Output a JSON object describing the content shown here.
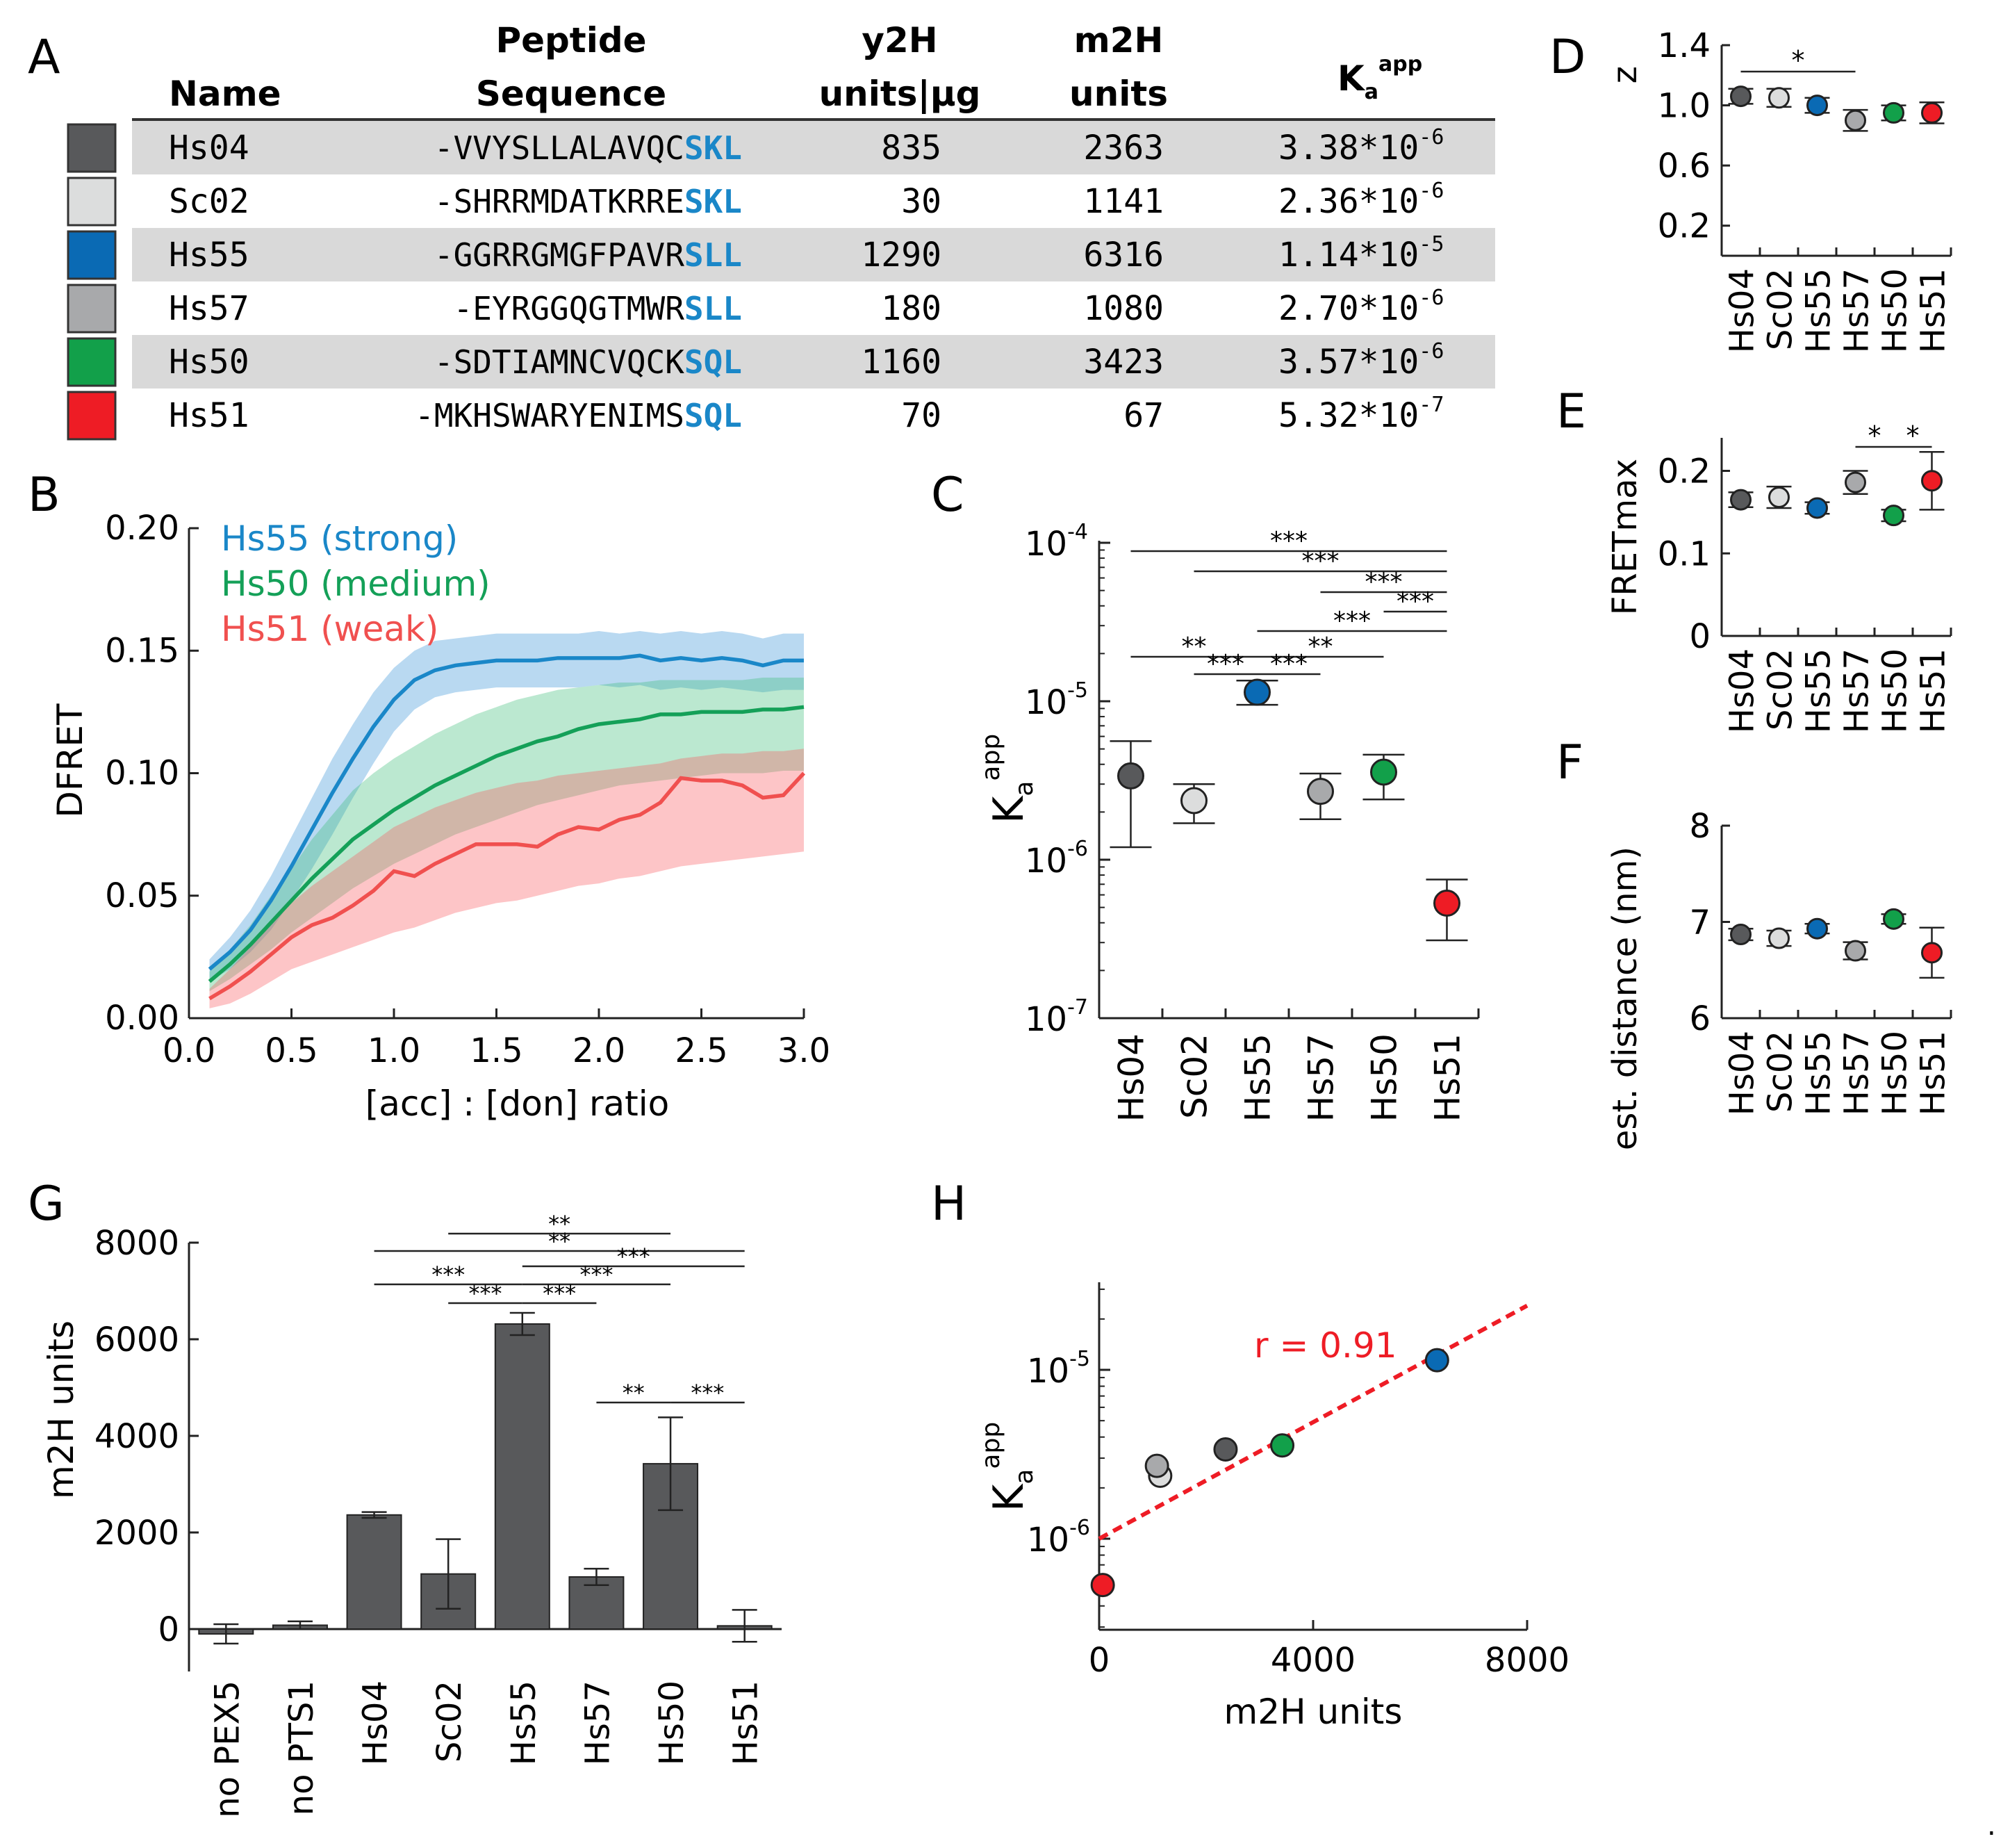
{
  "colors": {
    "Hs04": "#58595b",
    "Sc02": "#dcdddd",
    "Hs55": "#0a6ab4",
    "Hs57": "#a8a9ab",
    "Hs50": "#12a04a",
    "Hs51": "#ee1c25",
    "motif": "#1a87c8",
    "row_shade": "#d9d9d9",
    "bar": "#58595b",
    "strong": "#1a87c8",
    "medium": "#14a058",
    "weak": "#f0504f",
    "fit": "#ee1c25"
  },
  "panel_labels": {
    "A": "A",
    "B": "B",
    "C": "C",
    "D": "D",
    "E": "E",
    "F": "F",
    "G": "G",
    "H": "H"
  },
  "table": {
    "headers": {
      "name": "Name",
      "peptide_line1": "Peptide",
      "peptide_line2": "Sequence",
      "y2h_line1": "y2H",
      "y2h_line2": "units|µg",
      "m2h_line1": "m2H",
      "m2h_line2": "units",
      "ka_main": "K",
      "ka_sub": "a",
      "ka_sup": "app"
    },
    "rows": [
      {
        "name": "Hs04",
        "seq_prefix": "-VVYSLLALAVQC",
        "seq_motif": "SKL",
        "y2h": "835",
        "m2h": "2363",
        "ka_base": "3.38*10",
        "ka_exp": "-6"
      },
      {
        "name": "Sc02",
        "seq_prefix": "-SHRRMDATKRRE",
        "seq_motif": "SKL",
        "y2h": "30",
        "m2h": "1141",
        "ka_base": "2.36*10",
        "ka_exp": "-6"
      },
      {
        "name": "Hs55",
        "seq_prefix": "-GGRRGMGFPAVR",
        "seq_motif": "SLL",
        "y2h": "1290",
        "m2h": "6316",
        "ka_base": "1.14*10",
        "ka_exp": "-5"
      },
      {
        "name": "Hs57",
        "seq_prefix": "-EYRGGQGTMWR",
        "seq_motif": "SLL",
        "y2h": "180",
        "m2h": "1080",
        "ka_base": "2.70*10",
        "ka_exp": "-6"
      },
      {
        "name": "Hs50",
        "seq_prefix": "-SDTIAMNCVQCK",
        "seq_motif": "SQL",
        "y2h": "1160",
        "m2h": "3423",
        "ka_base": "3.57*10",
        "ka_exp": "-6"
      },
      {
        "name": "Hs51",
        "seq_prefix": "-MKHSWARYENIMS",
        "seq_motif": "SQL",
        "y2h": "70",
        "m2h": "67",
        "ka_base": "5.32*10",
        "ka_exp": "-7"
      }
    ]
  },
  "chart_data": [
    {
      "id": "B",
      "type": "line",
      "title": "",
      "xlabel": "[acc] : [don] ratio",
      "ylabel": "DFRET",
      "xlim": [
        0,
        3.0
      ],
      "ylim": [
        0,
        0.2
      ],
      "xticks": [
        0.0,
        0.5,
        1.0,
        1.5,
        2.0,
        2.5,
        3.0
      ],
      "xtick_labels": [
        "0.0",
        "0.5",
        "1.0",
        "1.5",
        "2.0",
        "2.5",
        "3.0"
      ],
      "yticks": [
        0.0,
        0.05,
        0.1,
        0.15,
        0.2
      ],
      "ytick_labels": [
        "0.00",
        "0.05",
        "0.10",
        "0.15",
        "0.20"
      ],
      "legend": [
        "Hs55 (strong)",
        "Hs50 (medium)",
        "Hs51 (weak)"
      ],
      "x": [
        0.1,
        0.2,
        0.3,
        0.4,
        0.5,
        0.6,
        0.7,
        0.8,
        0.9,
        1.0,
        1.1,
        1.2,
        1.3,
        1.4,
        1.5,
        1.6,
        1.7,
        1.8,
        1.9,
        2.0,
        2.1,
        2.2,
        2.3,
        2.4,
        2.5,
        2.6,
        2.7,
        2.8,
        2.9,
        3.0
      ],
      "series": [
        {
          "name": "Hs55 (strong)",
          "key": "strong",
          "values": [
            0.02,
            0.027,
            0.036,
            0.048,
            0.062,
            0.077,
            0.092,
            0.106,
            0.119,
            0.13,
            0.138,
            0.142,
            0.144,
            0.145,
            0.146,
            0.146,
            0.146,
            0.147,
            0.147,
            0.147,
            0.147,
            0.148,
            0.146,
            0.147,
            0.146,
            0.147,
            0.146,
            0.144,
            0.146,
            0.146
          ],
          "lower": [
            0.015,
            0.02,
            0.027,
            0.036,
            0.048,
            0.061,
            0.075,
            0.09,
            0.104,
            0.117,
            0.126,
            0.131,
            0.133,
            0.134,
            0.135,
            0.135,
            0.135,
            0.135,
            0.135,
            0.136,
            0.135,
            0.136,
            0.134,
            0.135,
            0.134,
            0.135,
            0.134,
            0.133,
            0.134,
            0.134
          ],
          "upper": [
            0.024,
            0.033,
            0.044,
            0.058,
            0.074,
            0.09,
            0.106,
            0.12,
            0.133,
            0.143,
            0.15,
            0.154,
            0.155,
            0.156,
            0.157,
            0.157,
            0.157,
            0.157,
            0.157,
            0.158,
            0.157,
            0.158,
            0.157,
            0.158,
            0.157,
            0.158,
            0.157,
            0.155,
            0.157,
            0.157
          ]
        },
        {
          "name": "Hs50 (medium)",
          "key": "medium",
          "values": [
            0.015,
            0.022,
            0.03,
            0.039,
            0.048,
            0.057,
            0.065,
            0.073,
            0.079,
            0.085,
            0.09,
            0.095,
            0.099,
            0.103,
            0.107,
            0.11,
            0.113,
            0.115,
            0.118,
            0.12,
            0.121,
            0.122,
            0.124,
            0.124,
            0.125,
            0.125,
            0.125,
            0.126,
            0.126,
            0.127
          ],
          "lower": [
            0.011,
            0.016,
            0.022,
            0.028,
            0.035,
            0.041,
            0.047,
            0.053,
            0.058,
            0.063,
            0.067,
            0.071,
            0.075,
            0.078,
            0.081,
            0.084,
            0.087,
            0.089,
            0.091,
            0.093,
            0.095,
            0.096,
            0.097,
            0.098,
            0.099,
            0.1,
            0.1,
            0.1,
            0.101,
            0.101
          ],
          "upper": [
            0.019,
            0.028,
            0.038,
            0.05,
            0.061,
            0.073,
            0.083,
            0.093,
            0.1,
            0.106,
            0.111,
            0.116,
            0.12,
            0.124,
            0.127,
            0.13,
            0.132,
            0.134,
            0.135,
            0.136,
            0.137,
            0.137,
            0.138,
            0.138,
            0.138,
            0.138,
            0.138,
            0.139,
            0.139,
            0.139
          ]
        },
        {
          "name": "Hs51 (weak)",
          "key": "weak",
          "values": [
            0.008,
            0.013,
            0.019,
            0.026,
            0.033,
            0.038,
            0.041,
            0.046,
            0.052,
            0.06,
            0.058,
            0.063,
            0.067,
            0.071,
            0.071,
            0.071,
            0.07,
            0.075,
            0.078,
            0.077,
            0.081,
            0.083,
            0.088,
            0.098,
            0.097,
            0.097,
            0.095,
            0.09,
            0.091,
            0.1
          ],
          "lower": [
            0.004,
            0.006,
            0.01,
            0.015,
            0.02,
            0.023,
            0.026,
            0.029,
            0.032,
            0.035,
            0.037,
            0.04,
            0.043,
            0.045,
            0.047,
            0.048,
            0.05,
            0.052,
            0.054,
            0.055,
            0.057,
            0.058,
            0.06,
            0.062,
            0.063,
            0.064,
            0.065,
            0.066,
            0.067,
            0.068
          ],
          "upper": [
            0.012,
            0.02,
            0.029,
            0.038,
            0.047,
            0.054,
            0.06,
            0.066,
            0.072,
            0.078,
            0.082,
            0.086,
            0.089,
            0.092,
            0.094,
            0.096,
            0.097,
            0.099,
            0.1,
            0.101,
            0.102,
            0.103,
            0.104,
            0.106,
            0.107,
            0.108,
            0.108,
            0.109,
            0.109,
            0.11
          ]
        }
      ]
    },
    {
      "id": "C",
      "type": "scatter",
      "title": "",
      "ylabel": "K_a^app",
      "yscale": "log",
      "ylim_exp": [
        -7,
        -4
      ],
      "ytick_labels": [
        {
          "base": "10",
          "exp": "-4"
        },
        {
          "base": "10",
          "exp": "-5"
        },
        {
          "base": "10",
          "exp": "-6"
        },
        {
          "base": "10",
          "exp": "-7"
        }
      ],
      "categories": [
        "Hs04",
        "Sc02",
        "Hs55",
        "Hs57",
        "Hs50",
        "Hs51"
      ],
      "values": [
        3.38e-06,
        2.36e-06,
        1.14e-05,
        2.7e-06,
        3.57e-06,
        5.32e-07
      ],
      "err_low": [
        1.2e-06,
        1.7e-06,
        9.5e-06,
        1.8e-06,
        2.4e-06,
        3.1e-07
      ],
      "err_high": [
        5.6e-06,
        3e-06,
        1.35e-05,
        3.5e-06,
        4.6e-06,
        7.5e-07
      ],
      "significance": [
        {
          "from": 0,
          "to": 5,
          "label": "***"
        },
        {
          "from": 1,
          "to": 5,
          "label": "***"
        },
        {
          "from": 3,
          "to": 5,
          "label": "***"
        },
        {
          "from": 4,
          "to": 5,
          "label": "***"
        },
        {
          "from": 2,
          "to": 5,
          "label": "***"
        },
        {
          "from": 0,
          "to": 2,
          "label": "**"
        },
        {
          "from": 2,
          "to": 4,
          "label": "**"
        },
        {
          "from": 1,
          "to": 2,
          "label": "***"
        },
        {
          "from": 2,
          "to": 3,
          "label": "***"
        }
      ]
    },
    {
      "id": "D",
      "type": "scatter",
      "ylabel": "z",
      "ylim": [
        0,
        1.4
      ],
      "yticks": [
        0.2,
        0.6,
        1.0,
        1.4
      ],
      "ytick_labels": [
        "0.2",
        "0.6",
        "1.0",
        "1.4"
      ],
      "categories": [
        "Hs04",
        "Sc02",
        "Hs55",
        "Hs57",
        "Hs50",
        "Hs51"
      ],
      "values": [
        1.06,
        1.05,
        1.0,
        0.9,
        0.95,
        0.95
      ],
      "err": [
        0.05,
        0.06,
        0.05,
        0.07,
        0.05,
        0.07
      ],
      "significance": [
        {
          "from": 0,
          "to": 3,
          "label": "*"
        }
      ]
    },
    {
      "id": "E",
      "type": "scatter",
      "ylabel": "FRETmax",
      "ylim": [
        0,
        0.24
      ],
      "yticks": [
        0,
        0.1,
        0.2
      ],
      "ytick_labels": [
        "0",
        "0.1",
        "0.2"
      ],
      "categories": [
        "Hs04",
        "Sc02",
        "Hs55",
        "Hs57",
        "Hs50",
        "Hs51"
      ],
      "values": [
        0.165,
        0.168,
        0.155,
        0.186,
        0.146,
        0.188
      ],
      "err": [
        0.009,
        0.013,
        0.007,
        0.014,
        0.007,
        0.035
      ],
      "significance": [
        {
          "from": 3,
          "to": 4,
          "label": "*"
        },
        {
          "from": 4,
          "to": 5,
          "label": "*"
        }
      ]
    },
    {
      "id": "F",
      "type": "scatter",
      "ylabel": "est. distance (nm)",
      "ylim": [
        6,
        8
      ],
      "yticks": [
        6,
        7,
        8
      ],
      "ytick_labels": [
        "6",
        "7",
        "8"
      ],
      "categories": [
        "Hs04",
        "Sc02",
        "Hs55",
        "Hs57",
        "Hs50",
        "Hs51"
      ],
      "values": [
        6.87,
        6.83,
        6.93,
        6.7,
        7.03,
        6.68
      ],
      "err": [
        0.06,
        0.08,
        0.05,
        0.09,
        0.05,
        0.26
      ]
    },
    {
      "id": "G",
      "type": "bar",
      "ylabel": "m2H units",
      "ylim": [
        -800,
        8000
      ],
      "yticks": [
        0,
        2000,
        4000,
        6000,
        8000
      ],
      "ytick_labels": [
        "0",
        "2000",
        "4000",
        "6000",
        "8000"
      ],
      "categories": [
        "no PEX5",
        "no PTS1",
        "Hs04",
        "Sc02",
        "Hs55",
        "Hs57",
        "Hs50",
        "Hs51"
      ],
      "values": [
        -100,
        80,
        2363,
        1141,
        6316,
        1080,
        3423,
        67
      ],
      "err": [
        200,
        80,
        60,
        720,
        230,
        170,
        960,
        330
      ],
      "significance": [
        {
          "from": 3,
          "to": 6,
          "label": "**"
        },
        {
          "from": 2,
          "to": 7,
          "label": "**"
        },
        {
          "from": 4,
          "to": 7,
          "label": "***"
        },
        {
          "from": 2,
          "to": 4,
          "label": "***"
        },
        {
          "from": 4,
          "to": 6,
          "label": "***"
        },
        {
          "from": 3,
          "to": 4,
          "label": "***"
        },
        {
          "from": 4,
          "to": 5,
          "label": "***"
        },
        {
          "from": 5,
          "to": 6,
          "label": "**"
        },
        {
          "from": 6,
          "to": 7,
          "label": "***"
        }
      ]
    },
    {
      "id": "H",
      "type": "scatter",
      "xlabel": "m2H units",
      "ylabel": "K_a^app",
      "yscale": "log",
      "xlim": [
        0,
        8000
      ],
      "xticks": [
        0,
        4000,
        8000
      ],
      "xtick_labels": [
        "0",
        "4000",
        "8000"
      ],
      "ytick_labels": [
        {
          "base": "10",
          "exp": "-5"
        },
        {
          "base": "10",
          "exp": "-6"
        }
      ],
      "annotation": "r = 0.91",
      "points": [
        {
          "name": "Hs04",
          "x": 2363,
          "y": 3.38e-06
        },
        {
          "name": "Sc02",
          "x": 1141,
          "y": 2.36e-06
        },
        {
          "name": "Hs55",
          "x": 6316,
          "y": 1.14e-05
        },
        {
          "name": "Hs57",
          "x": 1080,
          "y": 2.7e-06
        },
        {
          "name": "Hs50",
          "x": 3423,
          "y": 3.57e-06
        },
        {
          "name": "Hs51",
          "x": 67,
          "y": 5.32e-07
        }
      ],
      "fit": {
        "x": [
          0,
          8000
        ],
        "y": [
          1e-06,
          2.4e-05
        ]
      }
    }
  ],
  "trailing_mark": "."
}
